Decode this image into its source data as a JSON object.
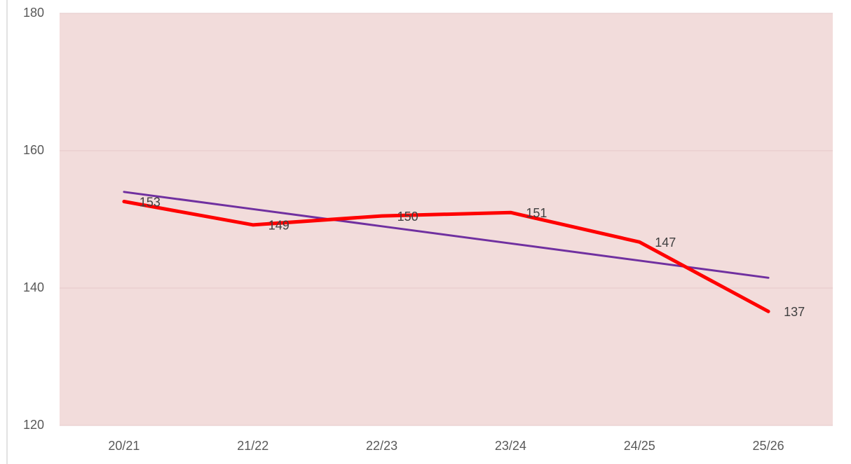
{
  "chart_data": {
    "type": "line",
    "categories": [
      "20/21",
      "21/22",
      "22/23",
      "23/24",
      "24/25",
      "25/26"
    ],
    "series": [
      {
        "color": "#ff0000",
        "values": [
          152.6,
          149.2,
          150.5,
          151.0,
          146.7,
          136.6
        ],
        "value_labels": [
          "153",
          "149",
          "150",
          "151",
          "147",
          "137"
        ]
      },
      {
        "color": "#7030a0",
        "values": [
          154.0,
          151.5,
          149.0,
          146.5,
          144.0,
          141.5
        ]
      }
    ],
    "ylim": [
      120,
      180
    ],
    "yticks": [
      120,
      140,
      160,
      180
    ],
    "grid": true,
    "plot_background": "#f2dcdb"
  }
}
